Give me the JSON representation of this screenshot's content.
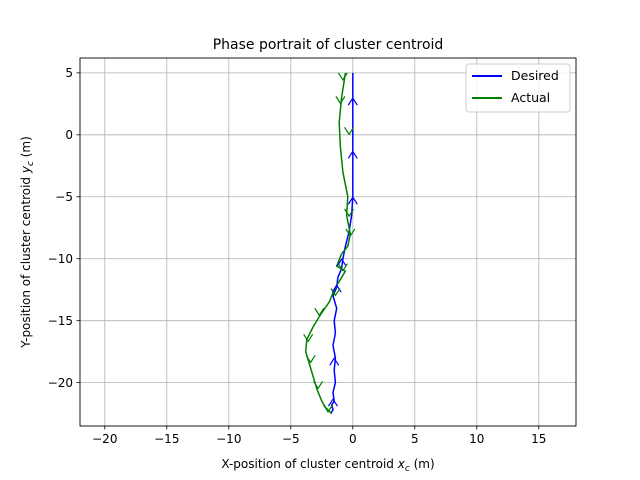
{
  "chart_data": {
    "type": "line",
    "title": "Phase portrait of cluster centroid",
    "xlabel_main": "X-position of cluster centroid ",
    "xlabel_sym": "x",
    "xlabel_sub": "c",
    "xlabel_unit": " (m)",
    "ylabel_main": "Y-position of cluster centroid ",
    "ylabel_sym": "y",
    "ylabel_sub": "c",
    "ylabel_unit": " (m)",
    "xlim": [
      -22,
      18
    ],
    "ylim": [
      -23.5,
      6.2
    ],
    "xticks": [
      -20,
      -15,
      -10,
      -5,
      0,
      5,
      10,
      15
    ],
    "xtick_labels": [
      "−20",
      "−15",
      "−10",
      "−5",
      "0",
      "5",
      "10",
      "15"
    ],
    "yticks": [
      -20,
      -15,
      -10,
      -5,
      0,
      5
    ],
    "ytick_labels": [
      "−20",
      "−15",
      "−10",
      "−5",
      "0",
      "5"
    ],
    "grid": true,
    "legend": "top-right",
    "series": [
      {
        "name": "Desired",
        "color": "#0000ff",
        "x": [
          0,
          0,
          0,
          0,
          0,
          -0.1,
          -0.3,
          -0.6,
          -0.8,
          -0.9,
          -1.2,
          -1.3,
          -1.6,
          -1.3,
          -1.5,
          -1.4,
          -1.6,
          -1.4,
          -1.5,
          -1.4,
          -1.6,
          -1.5,
          -1.7,
          -1.6,
          -1.8
        ],
        "y": [
          5,
          2.5,
          0,
          -2.5,
          -5,
          -6.5,
          -7.8,
          -9,
          -10,
          -10.8,
          -11.5,
          -12.3,
          -13,
          -14,
          -15,
          -16,
          -17,
          -18,
          -19,
          -20,
          -20.8,
          -21.5,
          -21.8,
          -22.2,
          -22.5
        ]
      },
      {
        "name": "Actual",
        "color": "#008000",
        "x": [
          -0.6,
          -0.9,
          -1.1,
          -1,
          -0.8,
          -0.4,
          -0.5,
          -0.2,
          -0.4,
          -0.9,
          -1.3,
          -0.6,
          -1.5,
          -1.9,
          -2.6,
          -3.2,
          -3.7,
          -3.8,
          -3.5,
          -3.2,
          -2.9,
          -2.5,
          -2.2,
          -1.7
        ],
        "y": [
          5,
          3,
          1,
          -1,
          -3,
          -5,
          -6.5,
          -8,
          -9,
          -9.6,
          -10.6,
          -11,
          -12.5,
          -13.5,
          -14.5,
          -15.5,
          -16.5,
          -17.5,
          -18.5,
          -19.5,
          -20.5,
          -21.5,
          -22,
          -22.5
        ]
      }
    ],
    "arrows": [
      {
        "series": 0,
        "x": 0,
        "y": 2.8,
        "dir": "up"
      },
      {
        "series": 0,
        "x": 0,
        "y": -1.5,
        "dir": "up"
      },
      {
        "series": 0,
        "x": 0,
        "y": -5.2,
        "dir": "up"
      },
      {
        "series": 0,
        "x": -0.9,
        "y": -10.2,
        "dir": "up"
      },
      {
        "series": 0,
        "x": -1.3,
        "y": -12.3,
        "dir": "up"
      },
      {
        "series": 0,
        "x": -1.5,
        "y": -18.2,
        "dir": "up"
      },
      {
        "series": 0,
        "x": -1.6,
        "y": -21.5,
        "dir": "up"
      },
      {
        "series": 1,
        "x": -0.8,
        "y": 4.6,
        "dir": "down"
      },
      {
        "series": 1,
        "x": -1.0,
        "y": 2.7,
        "dir": "down"
      },
      {
        "series": 1,
        "x": -0.3,
        "y": 0.2,
        "dir": "down"
      },
      {
        "series": 1,
        "x": -0.3,
        "y": -6.4,
        "dir": "down"
      },
      {
        "series": 1,
        "x": -0.2,
        "y": -8.0,
        "dir": "down"
      },
      {
        "series": 1,
        "x": -0.8,
        "y": -10.8,
        "dir": "down"
      },
      {
        "series": 1,
        "x": -1.4,
        "y": -12.8,
        "dir": "down"
      },
      {
        "series": 1,
        "x": -2.7,
        "y": -14.4,
        "dir": "down"
      },
      {
        "series": 1,
        "x": -3.6,
        "y": -16.5,
        "dir": "down"
      },
      {
        "series": 1,
        "x": -3.4,
        "y": -18.2,
        "dir": "down"
      },
      {
        "series": 1,
        "x": -2.8,
        "y": -20.3,
        "dir": "down"
      },
      {
        "series": 1,
        "x": -2.0,
        "y": -22.2,
        "dir": "down"
      }
    ]
  }
}
